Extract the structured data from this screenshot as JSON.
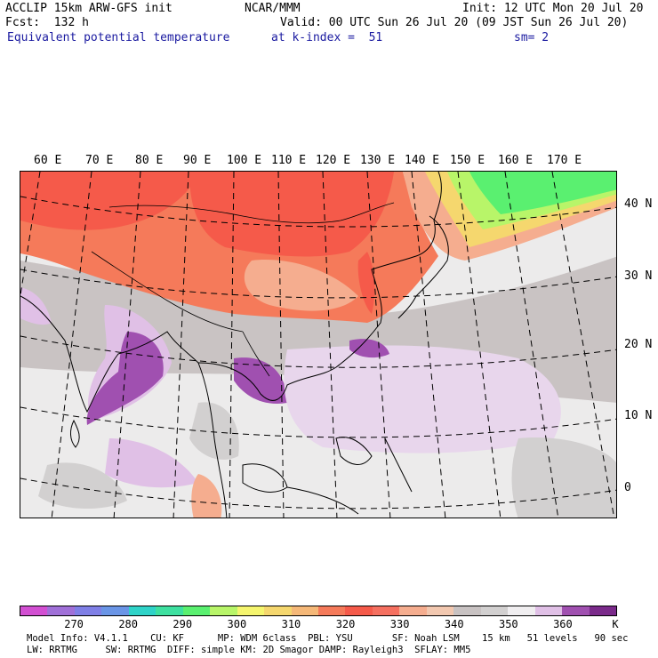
{
  "header": {
    "line1_left": "ACCLIP 15km ARW-GFS init",
    "line1_mid": "NCAR/MMM",
    "line1_right": "Init: 12 UTC Mon 20 Jul 20",
    "line2_left": "Fcst:  132 h",
    "line2_right": "Valid: 00 UTC Sun 26 Jul 20 (09 JST Sun 26 Jul 20)",
    "line3_left": "Equivalent potential temperature",
    "line3_mid": "at k-index =  51",
    "line3_right": "sm= 2"
  },
  "map": {
    "lon_labels": [
      "60 E",
      "70 E",
      "80 E",
      "90 E",
      "100 E",
      "110 E",
      "120 E",
      "130 E",
      "140 E",
      "150 E",
      "160 E",
      "170 E"
    ],
    "lat_labels": [
      "40 N",
      "30 N",
      "20 N",
      "10 N",
      "0"
    ]
  },
  "colorbar": {
    "colors": [
      "#d24fd2",
      "#a070d8",
      "#7f7fe6",
      "#6a95e6",
      "#2fd3c8",
      "#3ee0a0",
      "#5af070",
      "#b8f569",
      "#f5f56e",
      "#f5d76e",
      "#f5b878",
      "#f57a5a",
      "#f55a4a",
      "#f57060",
      "#f5ad8f",
      "#f2c8b0",
      "#c8c2c2",
      "#d2d0d0",
      "#f0eef0",
      "#e0c0e6",
      "#a050b0",
      "#7a2a8a"
    ],
    "labels": [
      "270",
      "280",
      "290",
      "300",
      "310",
      "320",
      "330",
      "340",
      "350",
      "360",
      "K"
    ]
  },
  "footer": {
    "line1": "Model Info: V4.1.1    CU: KF      MP: WDM 6class  PBL: YSU       SF: Noah LSM    15 km   51 levels   90 sec",
    "line2": "LW: RRTMG     SW: RRTMG  DIFF: simple KM: 2D Smagor DAMP: Rayleigh3  SFLAY: MM5"
  }
}
